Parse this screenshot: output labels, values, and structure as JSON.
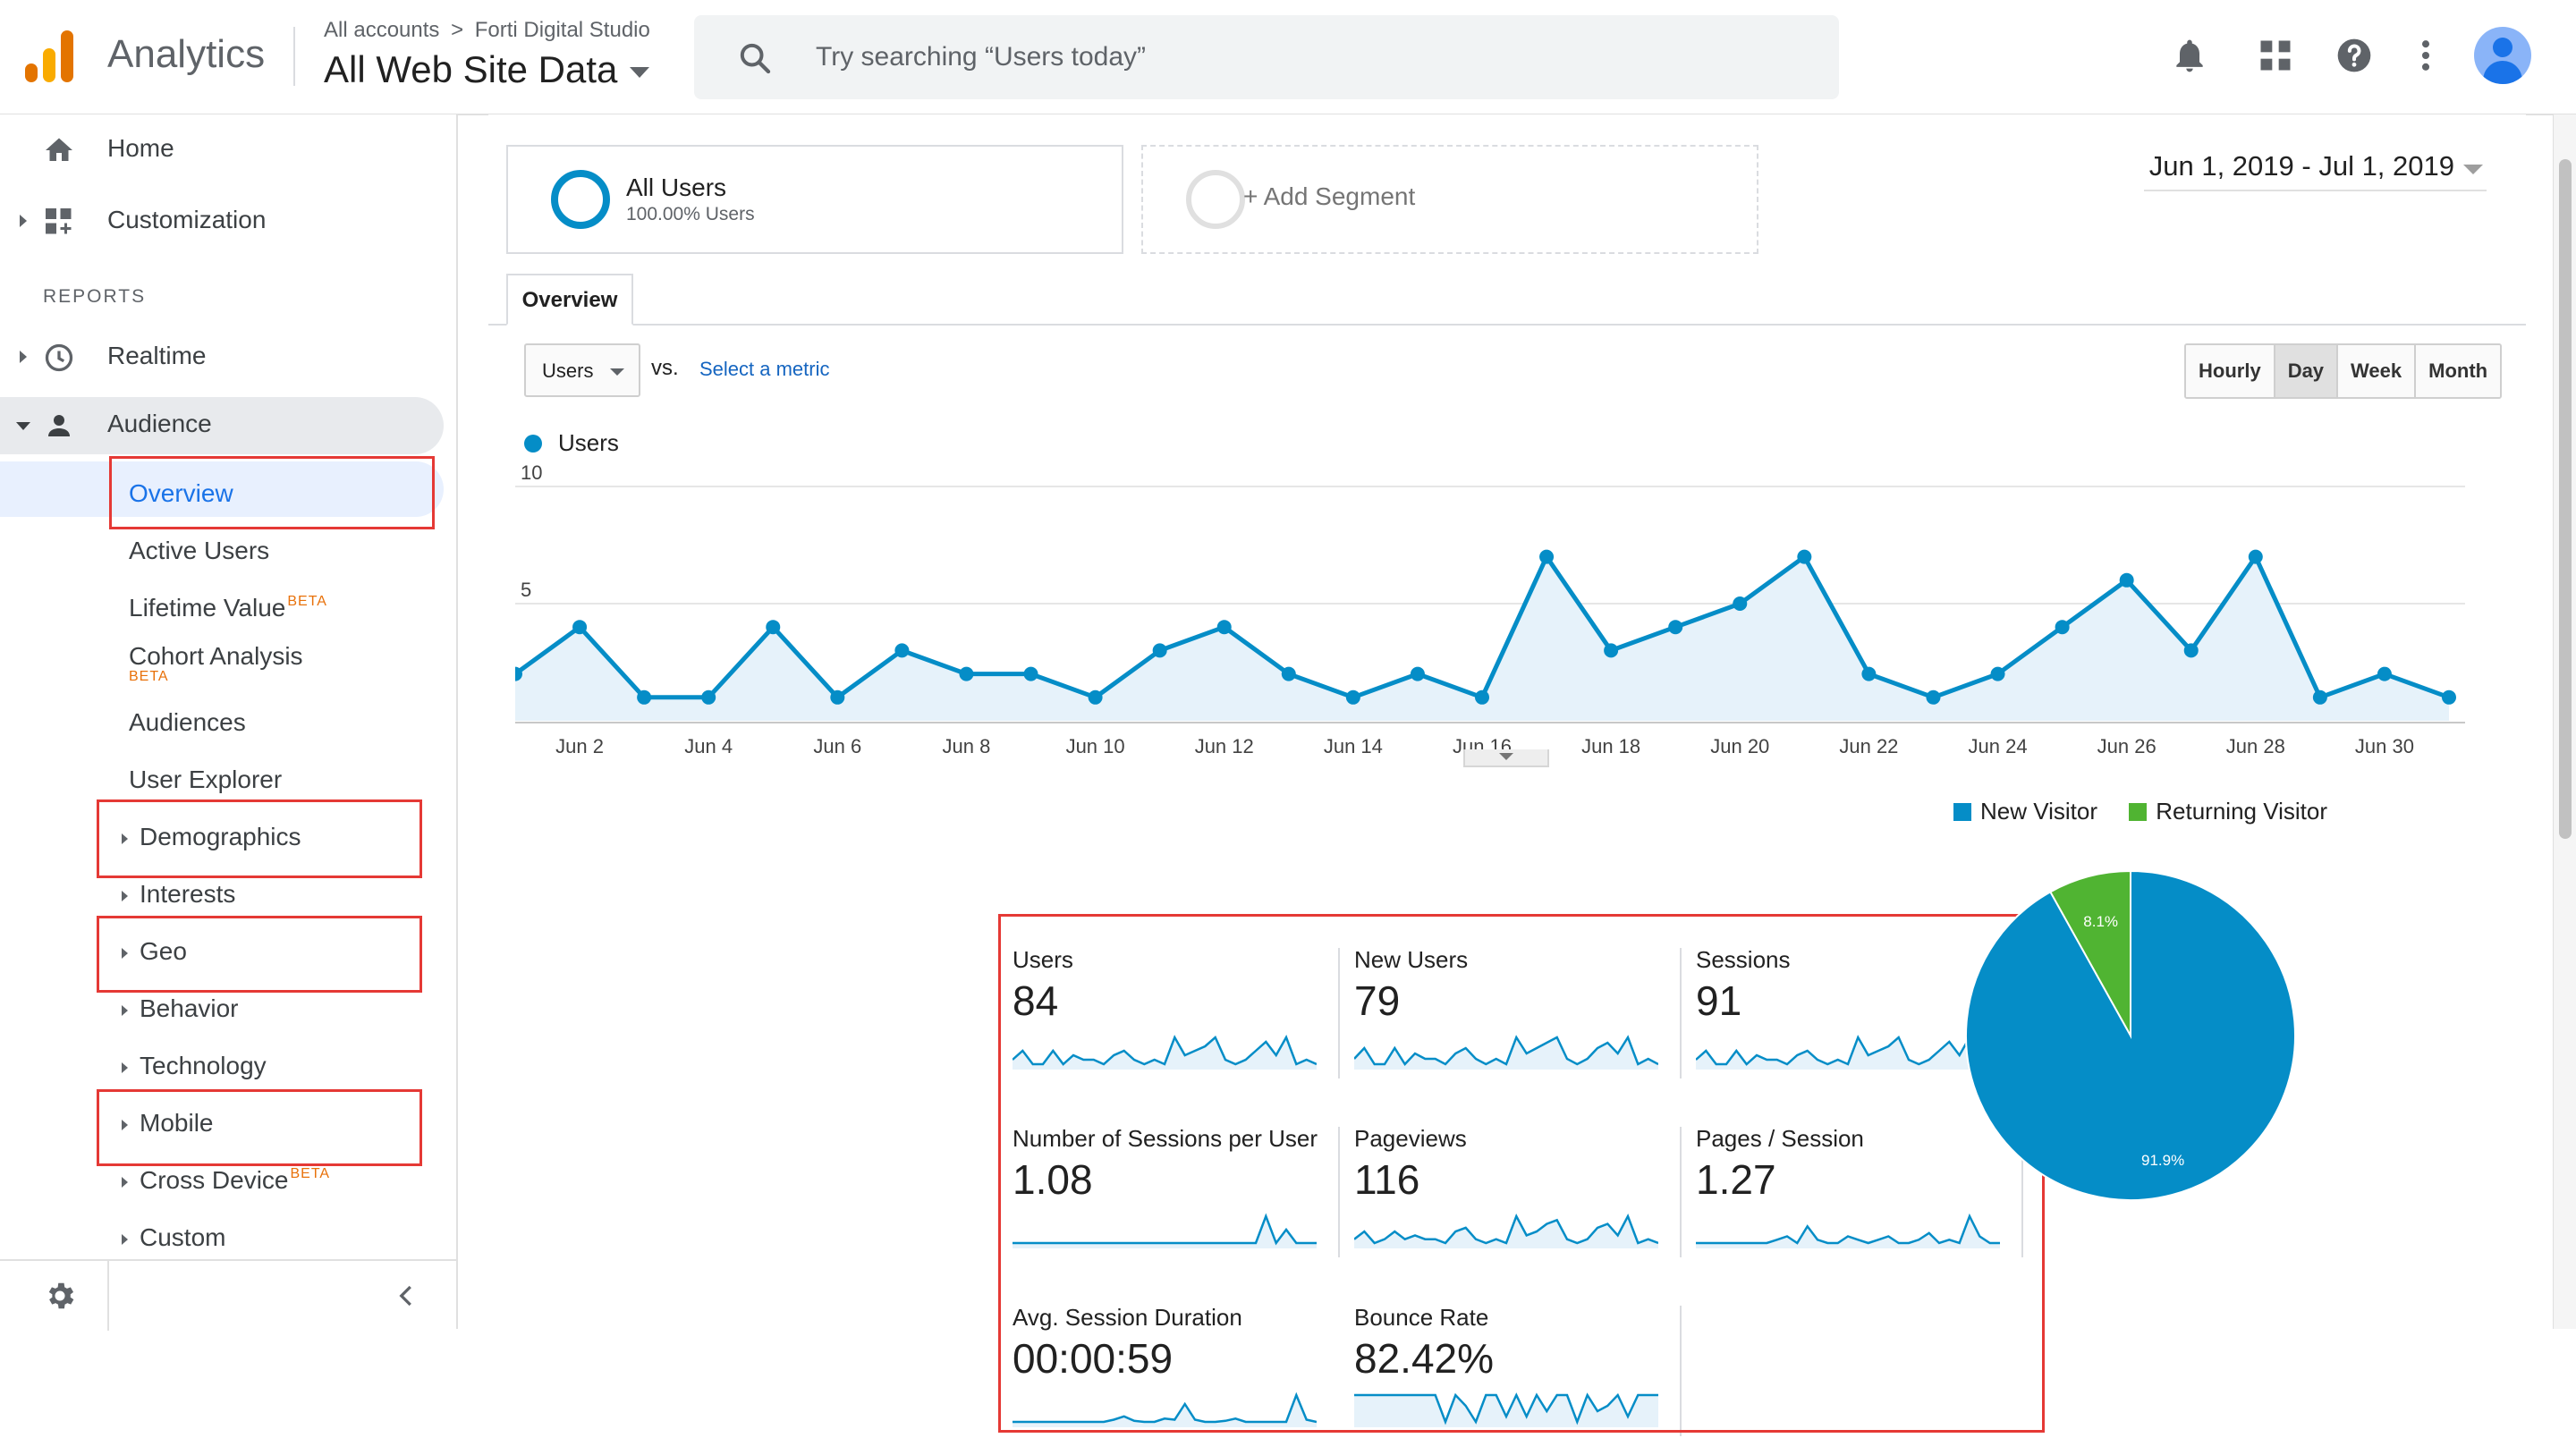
{
  "header": {
    "app_title": "Analytics",
    "breadcrumb": {
      "account": "All accounts",
      "separator": ">",
      "property": "Forti Digital Studio"
    },
    "view": "All Web Site Data",
    "search_placeholder": "Try searching “Users today”",
    "icons": [
      "bell-icon",
      "apps-grid-icon",
      "help-icon",
      "more-vert-icon",
      "account-avatar-icon"
    ]
  },
  "sidebar": {
    "home": "Home",
    "customization": "Customization",
    "reports_label": "REPORTS",
    "realtime": "Realtime",
    "audience": "Audience",
    "audience_items": {
      "overview": "Overview",
      "active_users": "Active Users",
      "lifetime_value": "Lifetime Value",
      "cohort_analysis": "Cohort Analysis",
      "audiences": "Audiences",
      "user_explorer": "User Explorer",
      "demographics": "Demographics",
      "interests": "Interests",
      "geo": "Geo",
      "behavior": "Behavior",
      "technology": "Technology",
      "mobile": "Mobile",
      "cross_device": "Cross Device",
      "custom": "Custom"
    },
    "beta_label": "BETA"
  },
  "segments": {
    "all_users": {
      "title": "All Users",
      "subtitle": "100.00% Users"
    },
    "add_segment": "+ Add Segment"
  },
  "date_range": "Jun 1, 2019 - Jul 1, 2019",
  "tabs": {
    "overview": "Overview"
  },
  "chart_controls": {
    "metric": "Users",
    "vs": "vs.",
    "select_metric": "Select a metric",
    "granularity": [
      "Hourly",
      "Day",
      "Week",
      "Month"
    ],
    "selected_granularity": "Day"
  },
  "chart_data": [
    {
      "type": "line",
      "series": [
        {
          "name": "Users",
          "color": "#058dc7",
          "values": [
            2,
            4,
            1,
            1,
            4,
            1,
            3,
            2,
            2,
            1,
            3,
            4,
            2,
            1,
            2,
            1,
            7,
            3,
            4,
            5,
            7,
            2,
            1,
            2,
            4,
            6,
            3,
            7,
            1,
            2,
            1
          ]
        }
      ],
      "x": [
        "Jun 1",
        "Jun 2",
        "Jun 3",
        "Jun 4",
        "Jun 5",
        "Jun 6",
        "Jun 7",
        "Jun 8",
        "Jun 9",
        "Jun 10",
        "Jun 11",
        "Jun 12",
        "Jun 13",
        "Jun 14",
        "Jun 15",
        "Jun 16",
        "Jun 17",
        "Jun 18",
        "Jun 19",
        "Jun 20",
        "Jun 21",
        "Jun 22",
        "Jun 23",
        "Jun 24",
        "Jun 25",
        "Jun 26",
        "Jun 27",
        "Jun 28",
        "Jun 29",
        "Jun 30",
        "Jul 1"
      ],
      "x_tick_labels": [
        "Jun 2",
        "Jun 4",
        "Jun 6",
        "Jun 8",
        "Jun 10",
        "Jun 12",
        "Jun 14",
        "Jun 16",
        "Jun 18",
        "Jun 20",
        "Jun 22",
        "Jun 24",
        "Jun 26",
        "Jun 28",
        "Jun 30"
      ],
      "y_tick_labels": [
        "10",
        "5"
      ],
      "ylim": [
        0,
        10
      ],
      "grid": true
    },
    {
      "type": "pie",
      "labels": [
        "New Visitor",
        "Returning Visitor"
      ],
      "values": [
        91.9,
        8.1
      ],
      "value_labels": [
        "91.9%",
        "8.1%"
      ],
      "colors": [
        "#058dc7",
        "#50b432"
      ],
      "legend_position": "top"
    }
  ],
  "scorecards": [
    {
      "name": "Users",
      "value": "84",
      "spark": [
        2,
        4,
        1,
        1,
        4,
        1,
        3,
        2,
        2,
        1,
        3,
        4,
        2,
        1,
        2,
        1,
        7,
        3,
        4,
        5,
        7,
        2,
        1,
        2,
        4,
        6,
        3,
        7,
        1,
        2,
        1
      ]
    },
    {
      "name": "New Users",
      "value": "79",
      "spark": [
        2,
        4,
        1,
        1,
        4,
        1,
        3,
        2,
        2,
        1,
        3,
        4,
        2,
        1,
        2,
        1,
        6,
        3,
        4,
        5,
        6,
        2,
        1,
        2,
        4,
        5,
        3,
        6,
        1,
        2,
        1
      ]
    },
    {
      "name": "Sessions",
      "value": "91",
      "spark": [
        2,
        4,
        1,
        1,
        4,
        1,
        3,
        2,
        2,
        1,
        3,
        4,
        2,
        1,
        2,
        1,
        7,
        3,
        4,
        5,
        7,
        2,
        1,
        2,
        4,
        6,
        3,
        7,
        1,
        2,
        1
      ]
    },
    {
      "name": "Number of Sessions per User",
      "value": "1.08",
      "spark": [
        1,
        1,
        1,
        1,
        1,
        1,
        1,
        1,
        1,
        1,
        1,
        1,
        1,
        1,
        1,
        1,
        1,
        1,
        1,
        1,
        1,
        1,
        1,
        1,
        1,
        1.2,
        1,
        1.1,
        1,
        1,
        1
      ]
    },
    {
      "name": "Pageviews",
      "value": "116",
      "spark": [
        2,
        4,
        1,
        2,
        4,
        2,
        3,
        2,
        2,
        1,
        4,
        5,
        2,
        1,
        2,
        1,
        8,
        3,
        4,
        6,
        7,
        2,
        1,
        2,
        5,
        6,
        3,
        8,
        1,
        2,
        1
      ]
    },
    {
      "name": "Pages / Session",
      "value": "1.27",
      "spark": [
        1,
        1,
        1,
        1,
        1,
        1,
        1,
        1,
        1.1,
        1.2,
        1,
        1.5,
        1.1,
        1,
        1,
        1.2,
        1.1,
        1,
        1.1,
        1.2,
        1,
        1,
        1.1,
        1.3,
        1,
        1.1,
        1,
        1.8,
        1.2,
        1,
        1
      ]
    },
    {
      "name": "Avg. Session Duration",
      "value": "00:00:59",
      "spark": [
        0,
        0,
        0,
        0,
        0,
        0,
        0,
        0,
        0,
        0,
        0.2,
        0.5,
        0.1,
        0,
        0,
        0.3,
        0.2,
        1.6,
        0.2,
        0,
        0,
        0.1,
        0.3,
        0,
        0,
        0,
        0,
        0,
        2.4,
        0.2,
        0
      ]
    },
    {
      "name": "Bounce Rate",
      "value": "82.42%",
      "spark": [
        1,
        1,
        1,
        1,
        1,
        1,
        1,
        1,
        1,
        0.5,
        1,
        0.8,
        0.5,
        1,
        1,
        0.6,
        1,
        0.6,
        1,
        0.7,
        1,
        1,
        0.5,
        1,
        0.7,
        0.8,
        1,
        0.6,
        1,
        1,
        1
      ]
    }
  ]
}
